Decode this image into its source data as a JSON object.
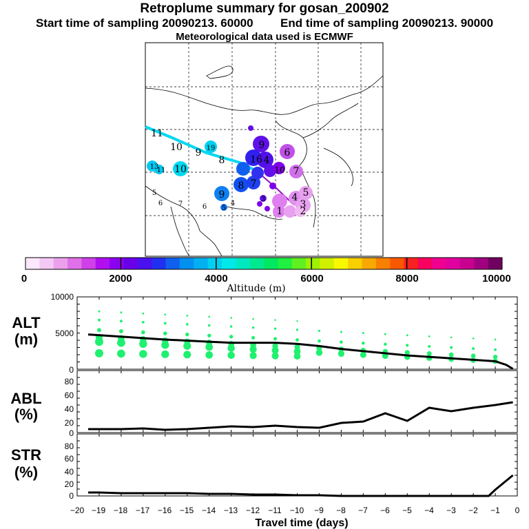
{
  "title": "Retroplume summary for gosan_200902",
  "subtitle_start": "Start time of sampling 20090213. 60000",
  "subtitle_end": "End time of sampling 20090213. 90000",
  "met_note": "Meteorological data used is ECMWF",
  "colorbar": {
    "label": "Altitude (m)",
    "ticks": [
      "0",
      "2000",
      "4000",
      "6000",
      "8000",
      "10000"
    ],
    "colors": [
      "#fce8fc",
      "#f4c8f4",
      "#eca0ec",
      "#e070e8",
      "#d040e8",
      "#b010f0",
      "#8c00f0",
      "#6a00e8",
      "#4a10f0",
      "#2030f0",
      "#1060f0",
      "#0090f0",
      "#00b0f0",
      "#00d0f0",
      "#00e8e8",
      "#00e8c0",
      "#00e890",
      "#00e860",
      "#20f040",
      "#60f020",
      "#a0f000",
      "#d0f000",
      "#f8f800",
      "#f8d000",
      "#f8a800",
      "#f88000",
      "#f85800",
      "#f82020",
      "#f80060",
      "#f00090",
      "#e000a0",
      "#c80090",
      "#a00080",
      "#700060"
    ]
  },
  "map_labels": {
    "cyan": [
      "11",
      "10",
      "9",
      "19",
      "8",
      "13",
      "11",
      "10",
      "5",
      "6",
      "7",
      "6"
    ],
    "blue": [
      "9",
      "16",
      "4",
      "8",
      "7",
      "9",
      "5",
      "3",
      "4"
    ],
    "purple": [
      "6",
      "10",
      "7",
      "5",
      "4",
      "3",
      "2",
      "1"
    ]
  },
  "chart_data": [
    {
      "type": "line",
      "panel": "ALT",
      "title": "ALT",
      "ylabel": "(m)",
      "xlabel": "Travel time (days)",
      "xlim": [
        -20,
        0
      ],
      "ylim": [
        0,
        10000
      ],
      "yticks": [
        "10000",
        "5000",
        "0"
      ],
      "x": [
        -19.5,
        -19,
        -18,
        -17,
        -16,
        -15,
        -14,
        -13,
        -12,
        -11,
        -10,
        -9,
        -8,
        -7,
        -6,
        -5,
        -4,
        -3,
        -2,
        -1,
        -0.5,
        -0.2
      ],
      "series": [
        {
          "name": "mean altitude",
          "values": [
            4800,
            4700,
            4500,
            4300,
            4100,
            3950,
            3800,
            3650,
            3650,
            3650,
            3500,
            3200,
            2800,
            2500,
            2200,
            1900,
            1700,
            1500,
            1300,
            1100,
            600,
            50
          ]
        }
      ],
      "scatter_days": [
        -19,
        -18,
        -17,
        -16,
        -15,
        -14,
        -13,
        -12,
        -11,
        -10,
        -9,
        -8,
        -7,
        -6,
        -5,
        -4,
        -3,
        -2,
        -1
      ]
    },
    {
      "type": "line",
      "panel": "ABL",
      "title": "ABL",
      "ylabel": "(%)",
      "xlim": [
        -20,
        0
      ],
      "ylim": [
        0,
        90
      ],
      "yticks": [
        "80",
        "60",
        "40",
        "20",
        "0"
      ],
      "x": [
        -19.5,
        -19,
        -18,
        -17,
        -16,
        -15,
        -14,
        -13,
        -12,
        -11,
        -10,
        -9,
        -8,
        -7,
        -6,
        -5,
        -4,
        -3,
        -2,
        -1,
        -0.2
      ],
      "series": [
        {
          "name": "ABL fraction",
          "values": [
            5,
            5,
            5,
            6,
            4,
            5,
            7,
            9,
            8,
            10,
            8,
            7,
            14,
            16,
            28,
            17,
            36,
            31,
            36,
            40,
            44
          ]
        }
      ]
    },
    {
      "type": "line",
      "panel": "STR",
      "title": "STR",
      "ylabel": "(%)",
      "xlim": [
        -20,
        0
      ],
      "ylim": [
        0,
        90
      ],
      "yticks": [
        "80",
        "60",
        "40",
        "20",
        "0"
      ],
      "xticks": [
        "−20",
        "−19",
        "−18",
        "−17",
        "−16",
        "−15",
        "−14",
        "−13",
        "−12",
        "−11",
        "−10",
        "−9",
        "−8",
        "−7",
        "−6",
        "−5",
        "−4",
        "−3",
        "−2",
        "−1",
        "0"
      ],
      "x": [
        -19.5,
        -19,
        -18,
        -17,
        -16,
        -15,
        -14,
        -13,
        -12,
        -11,
        -10,
        -9,
        -8,
        -7,
        -6,
        -5,
        -4,
        -3,
        -2,
        -1.3,
        -1,
        -0.2
      ],
      "series": [
        {
          "name": "STR fraction",
          "values": [
            5,
            5,
            4,
            4,
            4,
            4,
            3,
            3,
            2,
            2,
            1,
            1,
            0,
            0,
            0,
            0,
            0,
            0,
            0,
            0,
            9,
            30
          ]
        }
      ]
    }
  ]
}
